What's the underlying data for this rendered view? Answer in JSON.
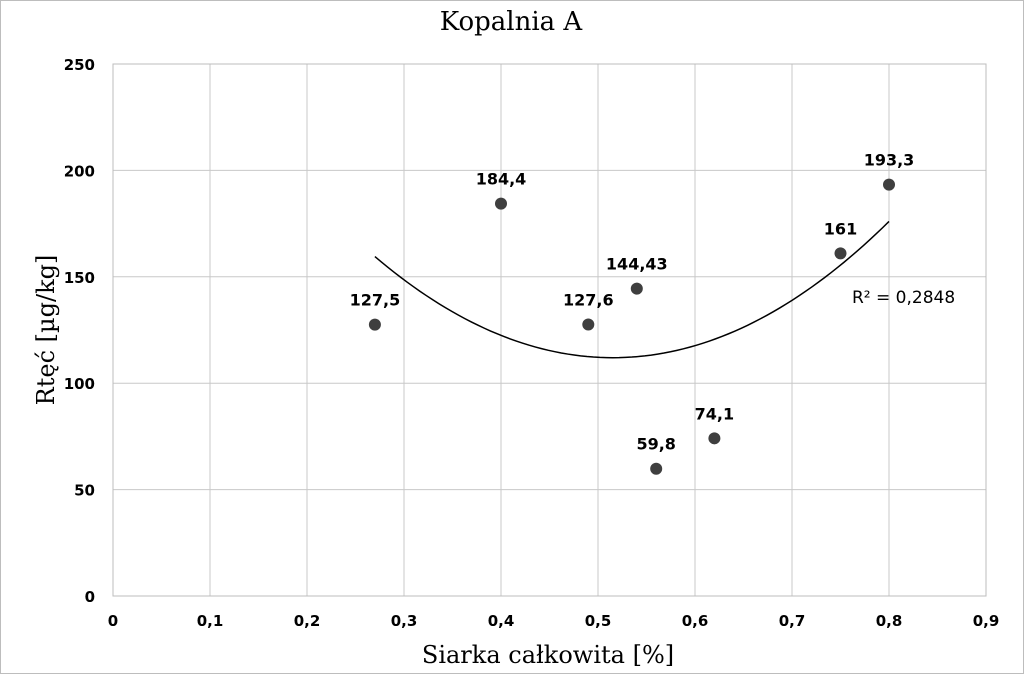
{
  "chart_data": {
    "type": "scatter",
    "title": "Kopalnia A",
    "xlabel": "Siarka całkowita [%]",
    "ylabel": "Rtęć [µg/kg]",
    "xlim": [
      0,
      0.9
    ],
    "ylim": [
      0,
      250
    ],
    "xticks": [
      0,
      0.1,
      0.2,
      0.3,
      0.4,
      0.5,
      0.6,
      0.7,
      0.8,
      0.9
    ],
    "xtick_labels": [
      "0",
      "0,1",
      "0,2",
      "0,3",
      "0,4",
      "0,5",
      "0,6",
      "0,7",
      "0,8",
      "0,9"
    ],
    "yticks": [
      0,
      50,
      100,
      150,
      200,
      250
    ],
    "ytick_labels": [
      "0",
      "50",
      "100",
      "150",
      "200",
      "250"
    ],
    "grid": true,
    "series": [
      {
        "name": "Kopalnia A",
        "points": [
          {
            "x": 0.27,
            "y": 127.5,
            "label": "127,5"
          },
          {
            "x": 0.4,
            "y": 184.4,
            "label": "184,4"
          },
          {
            "x": 0.49,
            "y": 127.6,
            "label": "127,6"
          },
          {
            "x": 0.54,
            "y": 144.43,
            "label": "144,43"
          },
          {
            "x": 0.56,
            "y": 59.8,
            "label": "59,8"
          },
          {
            "x": 0.62,
            "y": 74.1,
            "label": "74,1"
          },
          {
            "x": 0.75,
            "y": 161,
            "label": "161"
          },
          {
            "x": 0.8,
            "y": 193.3,
            "label": "193,3"
          }
        ]
      }
    ],
    "trendline": {
      "type": "polynomial-2",
      "x_range": [
        0.27,
        0.8
      ],
      "points": [
        {
          "x": 0.27,
          "y": 159.5
        },
        {
          "x": 0.51,
          "y": 112
        },
        {
          "x": 0.8,
          "y": 176
        }
      ],
      "r2_label": "R² = 0,2848"
    },
    "colors": {
      "marker": "#3f3f3f",
      "grid": "#c8c8c8",
      "trend": "#000000"
    }
  }
}
